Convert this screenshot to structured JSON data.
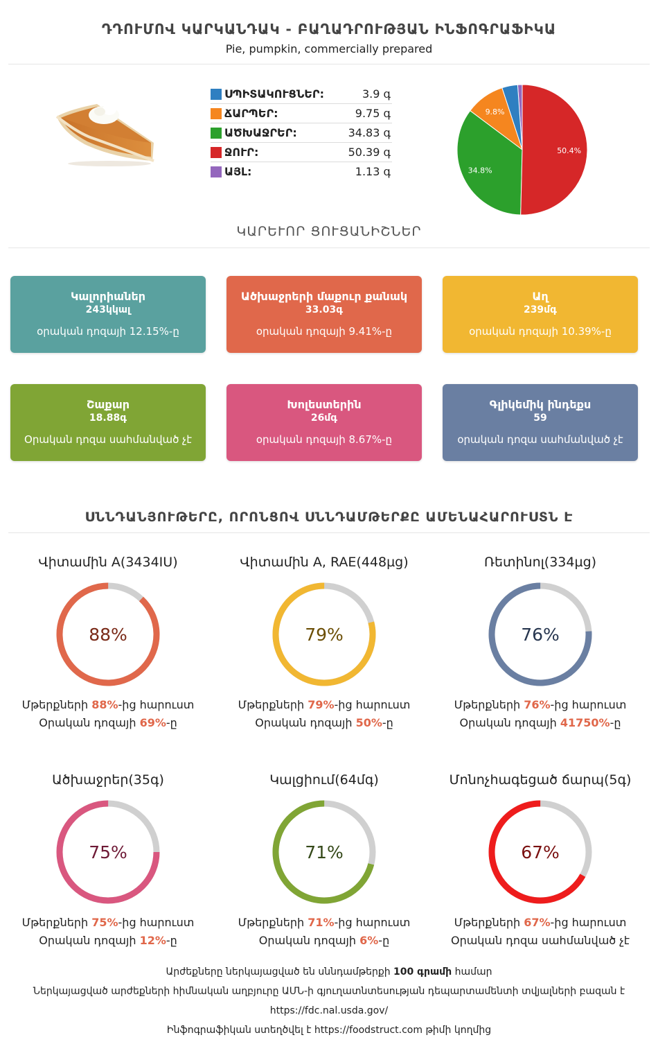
{
  "header": {
    "title": "ԴԴՈՒՄՈՎ ԿԱՐԿԱՆԴԱԿ - ԲԱՂԱԴՐՈՒԹՅԱՆ ԻՆՖՈԳՐԱՖԻԿԱ",
    "subtitle": "Pie, pumpkin, commercially prepared"
  },
  "composition": [
    {
      "name": "ՍՊԻՏԱԿՈՒՑՆԵՐ:",
      "value": "3.9 գ",
      "color": "#2f7fc1"
    },
    {
      "name": "ՃԱՐՊԵՐ:",
      "value": "9.75 գ",
      "color": "#f5861f"
    },
    {
      "name": "ԱԾԽԱՋՐԵՐ:",
      "value": "34.83 գ",
      "color": "#2ca02c"
    },
    {
      "name": "ՋՈՒՐ:",
      "value": "50.39 գ",
      "color": "#d62728"
    },
    {
      "name": "ԱՅԼ:",
      "value": "1.13 գ",
      "color": "#9467bd"
    }
  ],
  "chart_data": {
    "type": "pie",
    "categories": [
      "ՍՊԻՏԱԿՈՒՑՆԵՐ",
      "ՃԱՐՊԵՐ",
      "ԱԾԽԱՋՐԵՐ",
      "ՋՈՒՐ",
      "ԱՅԼ"
    ],
    "values": [
      3.9,
      9.75,
      34.83,
      50.39,
      1.13
    ],
    "colors": [
      "#2f7fc1",
      "#f5861f",
      "#2ca02c",
      "#d62728",
      "#9467bd"
    ],
    "slice_labels": [
      "",
      "9.8%",
      "34.8%",
      "50.4%",
      ""
    ]
  },
  "key_section_title": "ԿԱՐԵՒՈՐ ՑՈՒՑԱՆԻՇՆԵՐ",
  "cards": [
    {
      "title": "Կալորիաներ",
      "value": "243կկալ",
      "sub": "օրական դոզայի 12.15%-ը",
      "color": "#5aa19f"
    },
    {
      "title": "Ածխաջրերի մաքուր քանակ",
      "value": "33.03գ",
      "sub": "օրական դոզայի 9.41%-ը",
      "color": "#e0684b"
    },
    {
      "title": "Աղ",
      "value": "239մգ",
      "sub": "օրական դոզայի 10.39%-ը",
      "color": "#f1b732"
    },
    {
      "title": "Շաքար",
      "value": "18.88գ",
      "sub": "Օրական դոզա սահմանված չէ",
      "color": "#80a535"
    },
    {
      "title": "Խոլեստերին",
      "value": "26մգ",
      "sub": "օրական դոզայի 8.67%-ը",
      "color": "#d9577f"
    },
    {
      "title": "Գլիկեմիկ ինդեքս",
      "value": "59",
      "sub": "օրական դոզա սահմանված չէ",
      "color": "#6a7fa2"
    }
  ],
  "nutrients_section_title": "ՍՆՆԴԱՆՅՈՒԹԵՐԸ, ՈՐՈՆՑՈՎ ՍՆՆԴԱՄԹԵՐՔԸ ԱՄԵՆԱՀԱՐՈՒՍՏՆ Է",
  "nutrients": [
    {
      "title": "Վիտամին A(3434IU)",
      "percent": 88,
      "percent_label": "88%",
      "color": "#e0684b",
      "text_color": "#7a2a18",
      "line1_pre": "Մթերքների ",
      "line1_hl": "88%",
      "line1_post": "-ից հարուստ",
      "line2_pre": "Օրական դոզայի ",
      "line2_hl": "69%",
      "line2_post": "-ը"
    },
    {
      "title": "Վիտամին A, RAE(448µg)",
      "percent": 79,
      "percent_label": "79%",
      "color": "#f1b732",
      "text_color": "#6b4e05",
      "line1_pre": "Մթերքների ",
      "line1_hl": "79%",
      "line1_post": "-ից հարուստ",
      "line2_pre": "Օրական դոզայի ",
      "line2_hl": "50%",
      "line2_post": "-ը"
    },
    {
      "title": "Ռետինոլ(334µg)",
      "percent": 76,
      "percent_label": "76%",
      "color": "#6a7fa2",
      "text_color": "#27364f",
      "line1_pre": "Մթերքների ",
      "line1_hl": "76%",
      "line1_post": "-ից հարուստ",
      "line2_pre": "Օրական դոզայի ",
      "line2_hl": "41750%",
      "line2_post": "-ը"
    },
    {
      "title": "Ածխաջրեր(35գ)",
      "percent": 75,
      "percent_label": "75%",
      "color": "#d9577f",
      "text_color": "#6e1a36",
      "line1_pre": "Մթերքների ",
      "line1_hl": "75%",
      "line1_post": "-ից հարուստ",
      "line2_pre": "Օրական դոզայի ",
      "line2_hl": "12%",
      "line2_post": "-ը"
    },
    {
      "title": "Կալցիում(64մգ)",
      "percent": 71,
      "percent_label": "71%",
      "color": "#80a535",
      "text_color": "#35491a",
      "line1_pre": "Մթերքների ",
      "line1_hl": "71%",
      "line1_post": "-ից հարուստ",
      "line2_pre": "Օրական դոզայի ",
      "line2_hl": "6%",
      "line2_post": "-ը"
    },
    {
      "title": "Մոնոչհագեցած ճարպ(5գ)",
      "percent": 67,
      "percent_label": "67%",
      "color": "#ee1c1c",
      "text_color": "#7a1010",
      "line1_pre": "Մթերքների ",
      "line1_hl": "67%",
      "line1_post": "-ից հարուստ",
      "line2_pre": "Օրական դոզա սահմանված չէ",
      "line2_hl": "",
      "line2_post": ""
    }
  ],
  "footer": {
    "line1_pre": "Արժեքները ներկայացված են սննդամթերքի ",
    "line1_bold": "100 գրամի",
    "line1_post": " համար",
    "line2": "Ներկայացված արժեքների հիմնական աղբյուրը ԱՄՆ-ի գյուղատնտեսության դեպարտամենտի տվյալների բազան է",
    "line3": "https://fdc.nal.usda.gov/",
    "line4_pre": "Ինֆոգրաֆիկան ստեղծվել է ",
    "line4_link": "https://foodstruct.com",
    "line4_post": " թիմի կողմից"
  }
}
